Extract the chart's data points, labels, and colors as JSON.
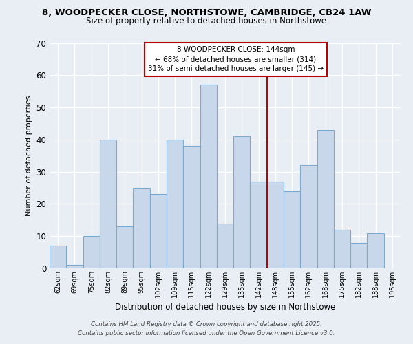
{
  "title": "8, WOODPECKER CLOSE, NORTHSTOWE, CAMBRIDGE, CB24 1AW",
  "subtitle": "Size of property relative to detached houses in Northstowe",
  "xlabel": "Distribution of detached houses by size in Northstowe",
  "ylabel": "Number of detached properties",
  "categories": [
    "62sqm",
    "69sqm",
    "75sqm",
    "82sqm",
    "89sqm",
    "95sqm",
    "102sqm",
    "109sqm",
    "115sqm",
    "122sqm",
    "129sqm",
    "135sqm",
    "142sqm",
    "148sqm",
    "155sqm",
    "162sqm",
    "168sqm",
    "175sqm",
    "182sqm",
    "188sqm",
    "195sqm"
  ],
  "values": [
    7,
    1,
    10,
    40,
    13,
    25,
    23,
    40,
    38,
    57,
    14,
    41,
    27,
    27,
    24,
    32,
    43,
    12,
    8,
    11,
    0
  ],
  "bar_color": "#c8d8ea",
  "bar_edge_color": "#7aaad0",
  "ylim": [
    0,
    70
  ],
  "yticks": [
    0,
    10,
    20,
    30,
    40,
    50,
    60,
    70
  ],
  "vline_color": "#bb0000",
  "annotation_title": "8 WOODPECKER CLOSE: 144sqm",
  "annotation_line1": "← 68% of detached houses are smaller (314)",
  "annotation_line2": "31% of semi-detached houses are larger (145) →",
  "footer1": "Contains HM Land Registry data © Crown copyright and database right 2025.",
  "footer2": "Contains public sector information licensed under the Open Government Licence v3.0.",
  "background_color": "#e8eef4",
  "grid_color": "#ffffff"
}
